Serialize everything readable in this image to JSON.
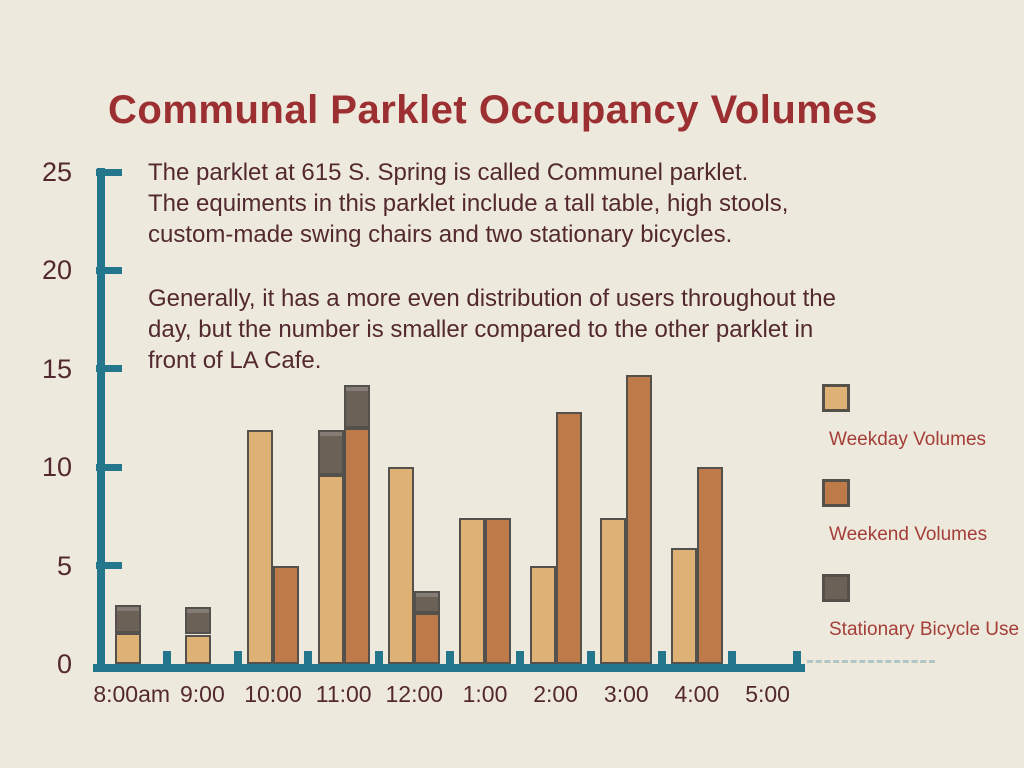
{
  "title": "Communal Parklet Occupancy Volumes",
  "annotation": {
    "para1_lines": [
      "The parklet at 615 S. Spring is called Communel parklet.",
      "The equiments in this parklet include a tall table, high stools,",
      "custom-made swing chairs and two stationary bicycles."
    ],
    "para2_lines": [
      "Generally, it has a more even distribution of users throughout the",
      "day, but the number is smaller compared to the other parklet in",
      "front of LA Cafe."
    ]
  },
  "legend": {
    "items": [
      {
        "label": "Weekday Volumes",
        "color": "#DDB274"
      },
      {
        "label": "Weekend Volumes",
        "color": "#BF7A49"
      },
      {
        "label": "Stationary Bicycle Use",
        "color": "#6B6157"
      }
    ]
  },
  "colors": {
    "background": "#EEE9DD",
    "axis": "#24768D",
    "title_text": "#9B2F31",
    "body_text": "#53292F",
    "legend_text": "#A43E38",
    "bar_border": "#54504B"
  },
  "chart_data": {
    "type": "bar",
    "categories": [
      "8:00am",
      "9:00",
      "10:00",
      "11:00",
      "12:00",
      "1:00",
      "2:00",
      "3:00",
      "4:00",
      "5:00"
    ],
    "series": [
      {
        "name": "Weekday Volumes",
        "color": "#DDB274",
        "values": [
          1.6,
          1.5,
          11.9,
          9.6,
          10.0,
          7.4,
          5.0,
          7.4,
          5.9,
          0
        ]
      },
      {
        "name": "Weekend Volumes",
        "color": "#BF7A49",
        "values": [
          0,
          0,
          5.0,
          12.0,
          2.6,
          7.4,
          12.8,
          14.7,
          10.0,
          0
        ]
      },
      {
        "name": "Stationary Bicycle Use (stacked on weekday bar)",
        "color": "#6B6157",
        "values": [
          1.4,
          1.4,
          0,
          2.3,
          0,
          0,
          0,
          0,
          0,
          0
        ]
      },
      {
        "name": "Stationary Bicycle Use (stacked on weekend bar)",
        "color": "#6B6157",
        "values": [
          0,
          0,
          0,
          2.2,
          1.1,
          0,
          0,
          0,
          0,
          0
        ]
      }
    ],
    "title": "Communal Parklet Occupancy Volumes",
    "xlabel": "",
    "ylabel": "",
    "ylim": [
      0,
      25
    ],
    "yticks": [
      0,
      5,
      10,
      15,
      20,
      25
    ],
    "grid": false,
    "legend_position": "right",
    "layout_note": "gray bicycle-use segments are stacked directly on top of their corresponding weekday/weekend bars"
  }
}
